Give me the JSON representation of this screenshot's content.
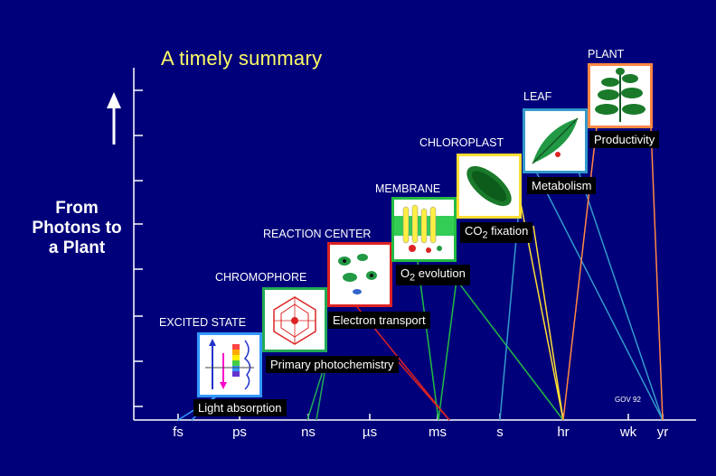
{
  "title": "A timely summary",
  "y_axis_label": "From Photons to a Plant",
  "credit": "GOV 92",
  "x_ticks": [
    "fs",
    "ps",
    "ns",
    "µs",
    "ms",
    "s",
    "hr",
    "wk",
    "yr"
  ],
  "stages": [
    {
      "name": "EXCITED STATE",
      "process": "Light absorption",
      "color": "#3399ff"
    },
    {
      "name": "CHROMOPHORE",
      "process": "Primary photochemistry",
      "color": "#22aa55"
    },
    {
      "name": "REACTION CENTER",
      "process": "Electron transport",
      "color": "#dd2222"
    },
    {
      "name": "MEMBRANE",
      "process_prefix": "O",
      "process_sub": "2",
      "process_suffix": " evolution",
      "color": "#22bb44"
    },
    {
      "name": "CHLOROPLAST",
      "process_prefix": "CO",
      "process_sub": "2",
      "process_suffix": " fixation",
      "color": "#ffdd33"
    },
    {
      "name": "LEAF",
      "process": "Metabolism",
      "color": "#3399cc"
    },
    {
      "name": "PLANT",
      "process": "Productivity",
      "color": "#ff8844"
    }
  ]
}
